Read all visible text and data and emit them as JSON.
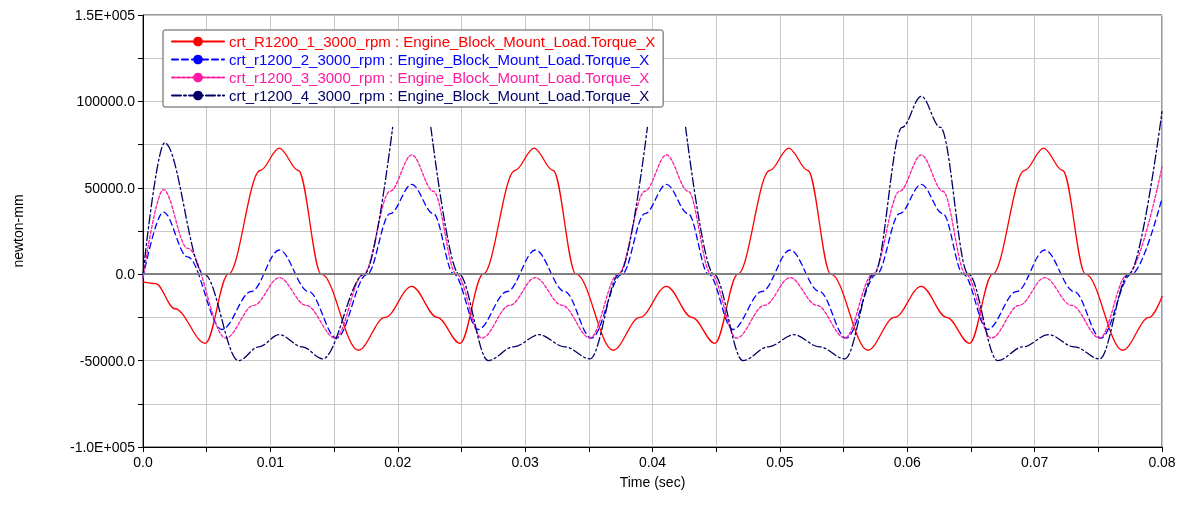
{
  "chart_data": {
    "type": "line",
    "xlabel": "Time (sec)",
    "ylabel": "newton-mm",
    "xlim": [
      0,
      0.08
    ],
    "ylim": [
      -100000,
      150000
    ],
    "xticks": [
      {
        "value": 0,
        "label": "0.0"
      },
      {
        "value": 0.005,
        "label": null
      },
      0.01,
      {
        "value": 0.015,
        "label": null
      },
      0.02,
      {
        "value": 0.025,
        "label": null
      },
      0.03,
      {
        "value": 0.035,
        "label": null
      },
      0.04,
      {
        "value": 0.045,
        "label": null
      },
      0.05,
      {
        "value": 0.055,
        "label": null
      },
      0.06,
      {
        "value": 0.065,
        "label": null
      },
      0.07,
      {
        "value": 0.075,
        "label": null
      },
      0.08
    ],
    "yticks": [
      {
        "value": -100000,
        "label": "-1.0E+005"
      },
      {
        "value": -75000,
        "label": null
      },
      {
        "value": -50000,
        "label": "-50000.0"
      },
      {
        "value": -25000,
        "label": null
      },
      {
        "value": 0,
        "label": "0.0"
      },
      {
        "value": 25000,
        "label": null
      },
      {
        "value": 50000,
        "label": "50000.0"
      },
      {
        "value": 75000,
        "label": null
      },
      {
        "value": 100000,
        "label": "100000.0"
      },
      {
        "value": 125000,
        "label": null
      },
      {
        "value": 150000,
        "label": "1.5E+005"
      }
    ],
    "grid": true,
    "legend": "top left",
    "marker": "none",
    "ref_lines": [
      {
        "axis": "y",
        "value": 0,
        "color": "#808080"
      }
    ],
    "series": [
      {
        "name": "crt_R1200_1_3000_rpm : Engine_Block_Mount_Load.Torque_X",
        "color": "#ff0000",
        "line_style": "solid",
        "x": [
          0,
          0.001,
          0.0025,
          0.0049,
          0.0067,
          0.0092,
          0.0107,
          0.0122,
          0.014,
          0.0169,
          0.019,
          0.0211,
          0.0231,
          0.0249,
          0.0267,
          0.0292,
          0.0307,
          0.0322,
          0.034,
          0.0369,
          0.039,
          0.0411,
          0.0431,
          0.0449,
          0.0467,
          0.0492,
          0.0507,
          0.0522,
          0.054,
          0.0569,
          0.059,
          0.0611,
          0.0631,
          0.0649,
          0.0667,
          0.0692,
          0.0707,
          0.0722,
          0.074,
          0.0769,
          0.079,
          0.08
        ],
        "values": [
          -4500,
          -5500,
          -20000,
          -40000,
          0,
          60000,
          73000,
          60000,
          0,
          -44000,
          -25000,
          -7000,
          -25000,
          -40000,
          0,
          60000,
          73000,
          60000,
          0,
          -44000,
          -25000,
          -7000,
          -25000,
          -40000,
          0,
          60000,
          73000,
          60000,
          0,
          -44000,
          -25000,
          -7000,
          -25000,
          -40000,
          0,
          60000,
          73000,
          60000,
          0,
          -44000,
          -25000,
          -13000
        ]
      },
      {
        "name": "crt_r1200_2_3000_rpm : Engine_Block_Mount_Load.Torque_X",
        "color": "#0000ff",
        "line_style": "dashed",
        "x": [
          0,
          0.0016,
          0.0035,
          0.0062,
          0.0085,
          0.0107,
          0.013,
          0.0152,
          0.0176,
          0.0194,
          0.0211,
          0.0228,
          0.0244,
          0.0263,
          0.0286,
          0.0308,
          0.0331,
          0.0352,
          0.0376,
          0.0394,
          0.0411,
          0.0428,
          0.0444,
          0.0463,
          0.0486,
          0.0508,
          0.0531,
          0.0552,
          0.0576,
          0.0594,
          0.0611,
          0.0628,
          0.0644,
          0.0663,
          0.0686,
          0.0708,
          0.0731,
          0.0752,
          0.0776,
          0.08
        ],
        "values": [
          -2000,
          36000,
          10000,
          -32000,
          -10000,
          14000,
          -10000,
          -37000,
          0,
          35000,
          52000,
          35000,
          0,
          -32000,
          -10000,
          14000,
          -10000,
          -37000,
          0,
          35000,
          52000,
          35000,
          0,
          -32000,
          -10000,
          14000,
          -10000,
          -37000,
          0,
          35000,
          52000,
          35000,
          0,
          -32000,
          -10000,
          14000,
          -10000,
          -37000,
          0,
          44000
        ]
      },
      {
        "name": "crt_r1200_3_3000_rpm : Engine_Block_Mount_Load.Torque_X",
        "color": "#ff1aa3",
        "line_style": "dotted",
        "x": [
          0,
          0.0016,
          0.0035,
          0.0065,
          0.0087,
          0.0107,
          0.0128,
          0.0151,
          0.0173,
          0.0194,
          0.0211,
          0.0228,
          0.0246,
          0.0266,
          0.0288,
          0.0308,
          0.0329,
          0.0351,
          0.0373,
          0.0394,
          0.0411,
          0.0428,
          0.0446,
          0.0466,
          0.0488,
          0.0508,
          0.0529,
          0.0551,
          0.0573,
          0.0594,
          0.0611,
          0.0628,
          0.0646,
          0.0666,
          0.0688,
          0.0708,
          0.0729,
          0.0751,
          0.0773,
          0.08
        ],
        "values": [
          -2000,
          49000,
          15000,
          -37000,
          -18000,
          -2000,
          -18000,
          -37000,
          0,
          48000,
          69000,
          48000,
          0,
          -37000,
          -18000,
          -2000,
          -18000,
          -37000,
          0,
          48000,
          69000,
          48000,
          0,
          -37000,
          -18000,
          -2000,
          -18000,
          -37000,
          0,
          48000,
          69000,
          48000,
          0,
          -37000,
          -18000,
          -2000,
          -18000,
          -37000,
          0,
          62000
        ]
      },
      {
        "name": "crt_r1200_4_3000_rpm : Engine_Block_Mount_Load.Torque_X",
        "color": "#000066",
        "line_style": "dashdot",
        "x": [
          0,
          0.0017,
          0.0048,
          0.0075,
          0.0091,
          0.0107,
          0.0125,
          0.0141,
          0.0174,
          0.0196,
          0.0211,
          0.0226,
          0.0248,
          0.0271,
          0.0291,
          0.0311,
          0.0331,
          0.0351,
          0.0374,
          0.0396,
          0.0411,
          0.0426,
          0.0448,
          0.0471,
          0.0491,
          0.0511,
          0.0531,
          0.0551,
          0.0574,
          0.0596,
          0.0611,
          0.0626,
          0.0648,
          0.0671,
          0.0691,
          0.0711,
          0.0731,
          0.0751,
          0.0774,
          0.08
        ],
        "values": [
          0,
          76000,
          0,
          -50000,
          -42000,
          -35000,
          -42000,
          -49000,
          0,
          85000,
          null,
          85000,
          0,
          -50000,
          -42000,
          -35000,
          -42000,
          -49000,
          0,
          85000,
          null,
          85000,
          0,
          -50000,
          -42000,
          -35000,
          -42000,
          -49000,
          0,
          85000,
          103000,
          85000,
          0,
          -50000,
          -42000,
          -35000,
          -42000,
          -49000,
          0,
          94000
        ]
      }
    ]
  }
}
